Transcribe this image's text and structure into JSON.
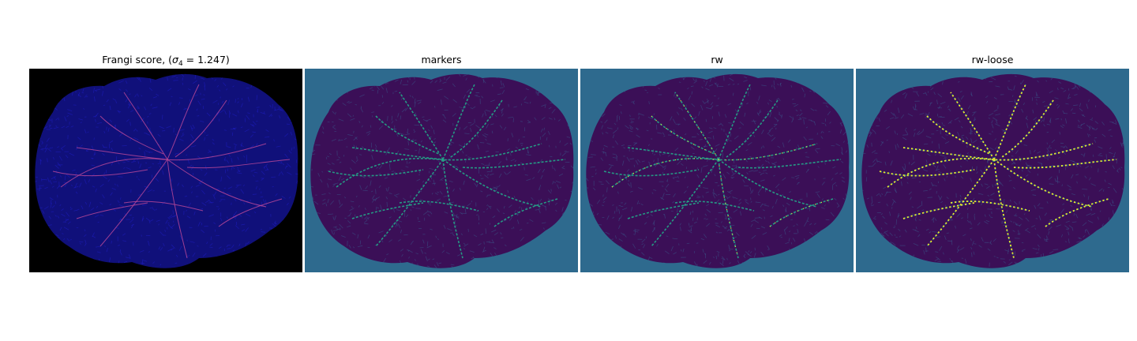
{
  "panels": [
    {
      "title_prefix": "Frangi score, (",
      "title_sigma": "σ",
      "title_sub": "4",
      "title_suffix": " = 1.247)",
      "background": "#000000",
      "tissue": "#10107a",
      "vessel": "#c04a9a",
      "texture": "#2020c8"
    },
    {
      "title": "markers",
      "background": "#2e6a8e",
      "tissue": "#3b0f57",
      "vessel": "#23a98a",
      "texture": "#3b5a8c"
    },
    {
      "title": "rw",
      "background": "#2e6a8e",
      "tissue": "#3b0f57",
      "vessel": "#23a98a",
      "highlight": "#f5e629",
      "texture": "#3b5a8c"
    },
    {
      "title": "rw-loose",
      "background": "#2e6a8e",
      "tissue": "#3b0f57",
      "vessel": "#23a98a",
      "highlight": "#f5e629",
      "texture": "#3b5a8c"
    }
  ]
}
